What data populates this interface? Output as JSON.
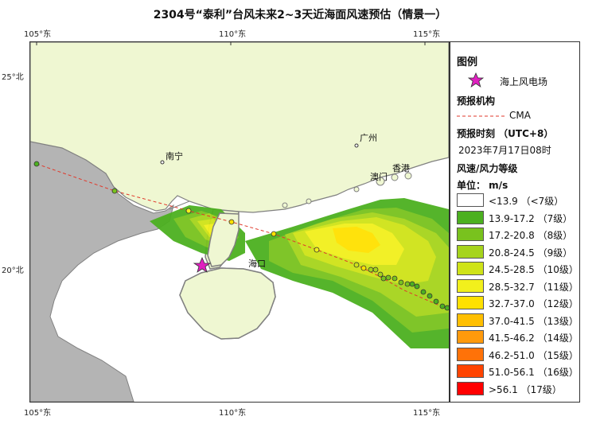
{
  "title": "2304号“泰利”台风未来2~3天近海面风速预估（情景一）",
  "lon_ticks": [
    "105°东",
    "110°东",
    "115°东"
  ],
  "lat_ticks": [
    "25°北",
    "20°北"
  ],
  "cities": [
    {
      "name": "南宁"
    },
    {
      "name": "广州"
    },
    {
      "name": "澳门"
    },
    {
      "name": "香港"
    },
    {
      "name": "海口"
    }
  ],
  "legend": {
    "title": "图例",
    "wind_farm_label": "海上风电场",
    "agency_title": "预报机构",
    "agency_name": "CMA",
    "forecast_time_title": "预报时刻 （UTC+8）",
    "forecast_time": "2023年7月17日08时",
    "scale_title": "风速/风力等级",
    "unit_label": "单位： m/s",
    "levels": [
      {
        "label": "<13.9  （<7级）",
        "color": "#ffffff"
      },
      {
        "label": "13.9-17.2 （7级）",
        "color": "#4cb020"
      },
      {
        "label": "17.2-20.8 （8级）",
        "color": "#79c21e"
      },
      {
        "label": "20.8-24.5 （9级）",
        "color": "#a6d41c"
      },
      {
        "label": "24.5-28.5 （10级）",
        "color": "#cfe318"
      },
      {
        "label": "28.5-32.7 （11级）",
        "color": "#f2f01c"
      },
      {
        "label": "32.7-37.0 （12级）",
        "color": "#ffe100"
      },
      {
        "label": "37.0-41.5 （13级）",
        "color": "#ffbf00"
      },
      {
        "label": "41.5-46.2 （14级）",
        "color": "#ff9a0c"
      },
      {
        "label": "46.2-51.0 （15级）",
        "color": "#ff7208"
      },
      {
        "label": "51.0-56.1 （16级）",
        "color": "#ff4400"
      },
      {
        "label": ">56.1 （17级）",
        "color": "#ff0000"
      }
    ]
  },
  "colors": {
    "land_china": "#eff7d2",
    "land_vietnam": "#b4b4b4",
    "sea": "#ffffff",
    "coast": "#808080",
    "track": "#e0392b",
    "star": "#e020c0"
  }
}
